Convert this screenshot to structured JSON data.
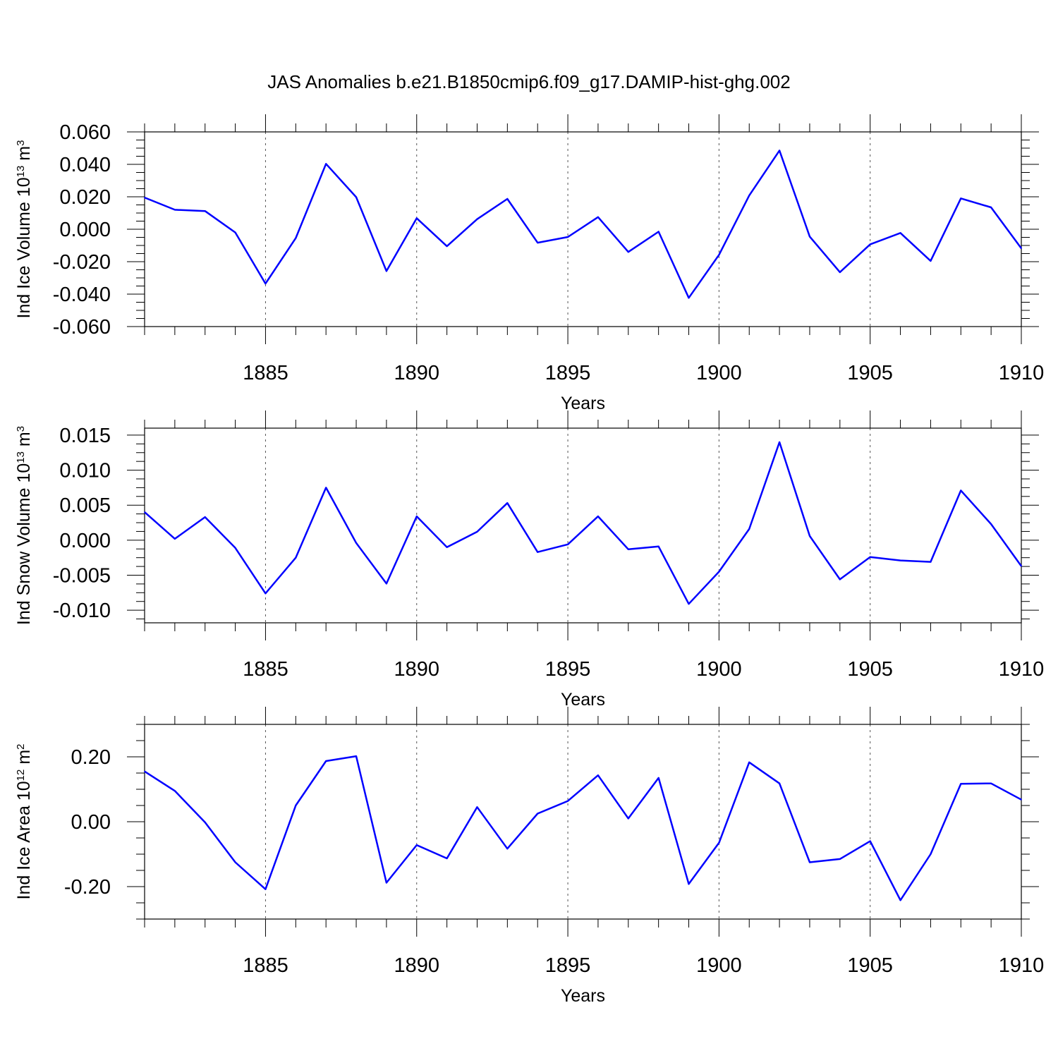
{
  "title": "JAS Anomalies b.e21.B1850cmip6.f09_g17.DAMIP-hist-ghg.002",
  "chart_data": [
    {
      "type": "line",
      "xlabel": "Years",
      "ylabel": "Ind Ice Volume 10",
      "ylabel_exp": "13",
      "ylabel_unit": " m",
      "ylabel_unit_exp": "3",
      "xlim": [
        1881,
        1910
      ],
      "ylim": [
        -0.06,
        0.06
      ],
      "xticks": [
        1885,
        1890,
        1895,
        1900,
        1905,
        1910
      ],
      "xtick_labels": [
        "1885",
        "1890",
        "1895",
        "1900",
        "1905",
        "1910"
      ],
      "yticks": [
        -0.06,
        -0.04,
        -0.02,
        0.0,
        0.02,
        0.04,
        0.06
      ],
      "ytick_labels": [
        "-0.060",
        "-0.040",
        "-0.020",
        "0.000",
        "0.020",
        "0.040",
        "0.060"
      ],
      "yminor_step": 0.005,
      "x": [
        1881,
        1882,
        1883,
        1884,
        1885,
        1886,
        1887,
        1888,
        1889,
        1890,
        1891,
        1892,
        1893,
        1894,
        1895,
        1896,
        1897,
        1898,
        1899,
        1900,
        1901,
        1902,
        1903,
        1904,
        1905,
        1906,
        1907,
        1908,
        1909,
        1910
      ],
      "series": [
        {
          "name": "Ind Ice Volume",
          "values": [
            0.0195,
            0.012,
            0.0112,
            -0.002,
            -0.0335,
            -0.0055,
            0.0403,
            0.0198,
            -0.0258,
            0.0068,
            -0.0105,
            0.0062,
            0.0187,
            -0.0083,
            -0.0048,
            0.0075,
            -0.014,
            -0.0015,
            -0.0423,
            -0.0158,
            0.0208,
            0.0485,
            -0.0045,
            -0.0265,
            -0.0093,
            -0.0023,
            -0.0195,
            0.019,
            0.0135,
            -0.0118
          ]
        }
      ]
    },
    {
      "type": "line",
      "xlabel": "Years",
      "ylabel": "Ind Snow Volume 10",
      "ylabel_exp": "13",
      "ylabel_unit": " m",
      "ylabel_unit_exp": "3",
      "xlim": [
        1881,
        1910
      ],
      "ylim": [
        -0.0118,
        0.016
      ],
      "xticks": [
        1885,
        1890,
        1895,
        1900,
        1905,
        1910
      ],
      "xtick_labels": [
        "1885",
        "1890",
        "1895",
        "1900",
        "1905",
        "1910"
      ],
      "yticks": [
        -0.01,
        -0.005,
        0.0,
        0.005,
        0.01,
        0.015
      ],
      "ytick_labels": [
        "-0.010",
        "-0.005",
        "0.000",
        "0.005",
        "0.010",
        "0.015"
      ],
      "yminor_step": 0.00125,
      "x": [
        1881,
        1882,
        1883,
        1884,
        1885,
        1886,
        1887,
        1888,
        1889,
        1890,
        1891,
        1892,
        1893,
        1894,
        1895,
        1896,
        1897,
        1898,
        1899,
        1900,
        1901,
        1902,
        1903,
        1904,
        1905,
        1906,
        1907,
        1908,
        1909,
        1910
      ],
      "series": [
        {
          "name": "Ind Snow Volume",
          "values": [
            0.004,
            0.0002,
            0.0033,
            -0.0011,
            -0.0076,
            -0.0025,
            0.0075,
            -0.0004,
            -0.0062,
            0.0034,
            -0.001,
            0.0012,
            0.0053,
            -0.0017,
            -0.0006,
            0.0034,
            -0.0013,
            -0.0009,
            -0.0091,
            -0.0045,
            0.0016,
            0.014,
            0.0006,
            -0.0056,
            -0.0024,
            -0.0029,
            -0.0031,
            0.0071,
            0.0023,
            -0.0037
          ]
        }
      ]
    },
    {
      "type": "line",
      "xlabel": "Years",
      "ylabel": "Ind Ice Area 10",
      "ylabel_exp": "12",
      "ylabel_unit": " m",
      "ylabel_unit_exp": "2",
      "xlim": [
        1881,
        1910
      ],
      "ylim": [
        -0.3,
        0.3
      ],
      "xticks": [
        1885,
        1890,
        1895,
        1900,
        1905,
        1910
      ],
      "xtick_labels": [
        "1885",
        "1890",
        "1895",
        "1900",
        "1905",
        "1910"
      ],
      "yticks": [
        -0.2,
        0.0,
        0.2
      ],
      "ytick_labels": [
        "-0.20",
        "0.00",
        "0.20"
      ],
      "yminor_step": 0.05,
      "x": [
        1881,
        1882,
        1883,
        1884,
        1885,
        1886,
        1887,
        1888,
        1889,
        1890,
        1891,
        1892,
        1893,
        1894,
        1895,
        1896,
        1897,
        1898,
        1899,
        1900,
        1901,
        1902,
        1903,
        1904,
        1905,
        1906,
        1907,
        1908,
        1909,
        1910
      ],
      "series": [
        {
          "name": "Ind Ice Area",
          "values": [
            0.155,
            0.095,
            -0.002,
            -0.125,
            -0.208,
            0.05,
            0.187,
            0.202,
            -0.188,
            -0.072,
            -0.113,
            0.045,
            -0.083,
            0.025,
            0.064,
            0.143,
            0.01,
            0.135,
            -0.192,
            -0.065,
            0.183,
            0.118,
            -0.125,
            -0.115,
            -0.06,
            -0.242,
            -0.1,
            0.117,
            0.118,
            0.068
          ]
        }
      ]
    }
  ]
}
